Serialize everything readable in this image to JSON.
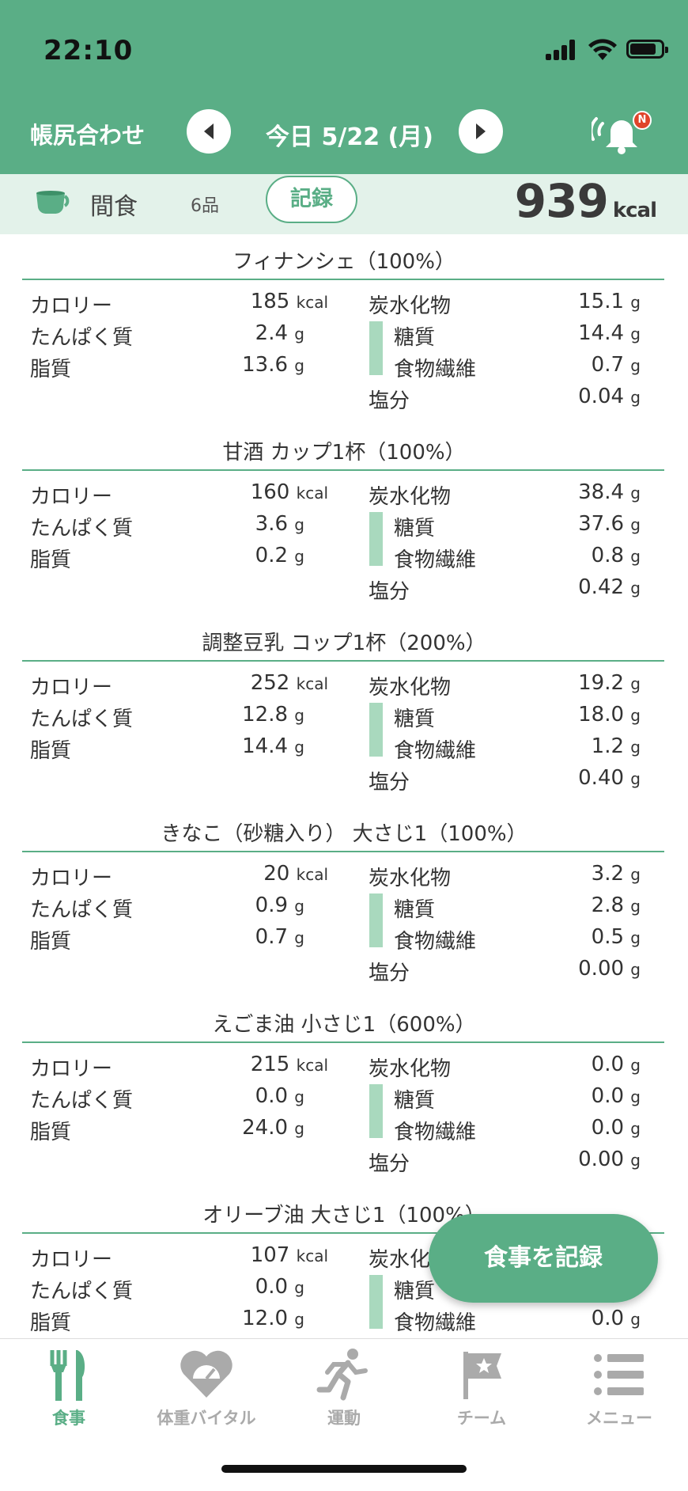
{
  "status": {
    "time": "22:10"
  },
  "header": {
    "title": "帳尻合わせ",
    "date": "今日 5/22 (月)",
    "badge": "N"
  },
  "meal": {
    "name": "間食",
    "count": "6品",
    "record_label": "記録",
    "total_kcal": "939",
    "kcal_unit": "kcal"
  },
  "labels": {
    "calorie": "カロリー",
    "protein": "たんぱく質",
    "fat": "脂質",
    "carb": "炭水化物",
    "sugar": "糖質",
    "fiber": "食物繊維",
    "salt": "塩分",
    "g": "g",
    "kcal": "kcal"
  },
  "foods": [
    {
      "title": "フィナンシェ（100%）",
      "calorie": "185",
      "protein": "2.4",
      "fat": "13.6",
      "carb": "15.1",
      "sugar": "14.4",
      "fiber": "0.7",
      "salt": "0.04"
    },
    {
      "title": "甘酒 カップ1杯（100%）",
      "calorie": "160",
      "protein": "3.6",
      "fat": "0.2",
      "carb": "38.4",
      "sugar": "37.6",
      "fiber": "0.8",
      "salt": "0.42"
    },
    {
      "title": "調整豆乳 コップ1杯（200%）",
      "calorie": "252",
      "protein": "12.8",
      "fat": "14.4",
      "carb": "19.2",
      "sugar": "18.0",
      "fiber": "1.2",
      "salt": "0.40"
    },
    {
      "title": "きなこ（砂糖入り） 大さじ1（100%）",
      "calorie": "20",
      "protein": "0.9",
      "fat": "0.7",
      "carb": "3.2",
      "sugar": "2.8",
      "fiber": "0.5",
      "salt": "0.00"
    },
    {
      "title": "えごま油 小さじ1（600%）",
      "calorie": "215",
      "protein": "0.0",
      "fat": "24.0",
      "carb": "0.0",
      "sugar": "0.0",
      "fiber": "0.0",
      "salt": "0.00"
    },
    {
      "title": "オリーブ油 大さじ1（100%）",
      "calorie": "107",
      "protein": "0.0",
      "fat": "12.0",
      "carb": "",
      "sugar": "",
      "fiber": "0.0",
      "salt": ""
    }
  ],
  "fab": {
    "label": "食事を記録"
  },
  "tabs": [
    {
      "label": "食事",
      "icon": "fork-knife-icon"
    },
    {
      "label": "体重バイタル",
      "icon": "heart-scale-icon"
    },
    {
      "label": "運動",
      "icon": "runner-icon"
    },
    {
      "label": "チーム",
      "icon": "flag-icon"
    },
    {
      "label": "メニュー",
      "icon": "menu-list-icon"
    }
  ],
  "colors": {
    "primary": "#5aae86",
    "light": "#e3f2ea",
    "sub_bar": "#a9d9be",
    "badge": "#e0442a"
  }
}
